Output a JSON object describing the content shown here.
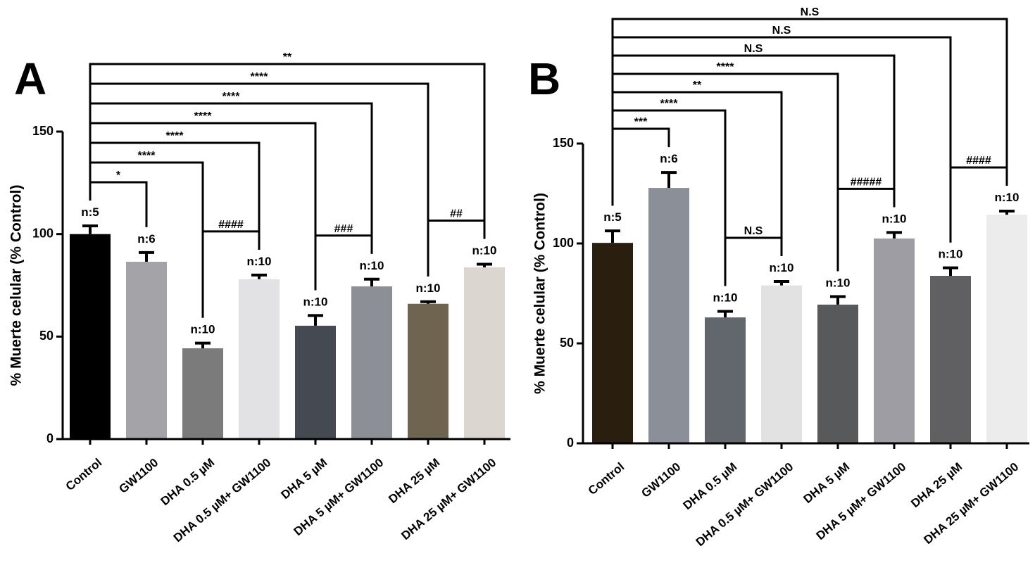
{
  "chart_data": [
    {
      "type": "bar",
      "panel": "A",
      "ylabel": "% Muerte celular (% Control)",
      "categories": [
        "Control",
        "GW1100",
        "DHA 0.5 µM",
        "DHA 0.5 µM+ GW1100",
        "DHA 5 µM",
        "DHA 5 µM+ GW1100",
        "DHA 25 µM",
        "DHA 25 µM+ GW1100"
      ],
      "values": [
        100,
        86.5,
        44.3,
        78,
        55.3,
        74.5,
        66,
        83.8
      ],
      "errors": [
        4,
        4.5,
        2.5,
        2,
        5,
        3.5,
        1,
        1.5
      ],
      "colors": [
        "#000000",
        "#a3a3a8",
        "#7b7b7b",
        "#e2e2e4",
        "#454a52",
        "#8c8f96",
        "#6e6450",
        "#dcd6d0"
      ],
      "n_labels": [
        "n:5",
        "n:6",
        "n:10",
        "n:10",
        "n:10",
        "n:10",
        "n:10",
        "n:10"
      ],
      "ylim": [
        0,
        150
      ],
      "yticks": [
        0,
        50,
        100,
        150
      ],
      "comparisons": [
        {
          "from": 0,
          "to": 1,
          "label": "*"
        },
        {
          "from": 0,
          "to": 2,
          "label": "****"
        },
        {
          "from": 0,
          "to": 3,
          "label": "****"
        },
        {
          "from": 0,
          "to": 4,
          "label": "****"
        },
        {
          "from": 0,
          "to": 5,
          "label": "****"
        },
        {
          "from": 0,
          "to": 6,
          "label": "****"
        },
        {
          "from": 0,
          "to": 7,
          "label": "**"
        },
        {
          "from": 2,
          "to": 3,
          "label": "####"
        },
        {
          "from": 4,
          "to": 5,
          "label": "###"
        },
        {
          "from": 6,
          "to": 7,
          "label": "##"
        }
      ]
    },
    {
      "type": "bar",
      "panel": "B",
      "ylabel": "% Muerte celular (% Control)",
      "categories": [
        "Control",
        "GW1100",
        "DHA 0.5 µM",
        "DHA 0.5 µM+ GW1100",
        "DHA 5 µM",
        "DHA 5 µM+ GW1100",
        "DHA 25 µM",
        "DHA 25 µM+ GW1100"
      ],
      "values": [
        100.3,
        127.8,
        63,
        79,
        69.4,
        102.5,
        83.8,
        114.4
      ],
      "errors": [
        6,
        7.7,
        3,
        2,
        4,
        3,
        4,
        1.8
      ],
      "colors": [
        "#2a1f0f",
        "#8a8f98",
        "#62676e",
        "#e2e2e2",
        "#58595b",
        "#9d9da3",
        "#606062",
        "#ececec"
      ],
      "n_labels": [
        "n:5",
        "n:6",
        "n:10",
        "n:10",
        "n:10",
        "n:10",
        "n:10",
        "n:10"
      ],
      "ylim": [
        0,
        150
      ],
      "yticks": [
        0,
        50,
        100,
        150
      ],
      "comparisons": [
        {
          "from": 0,
          "to": 1,
          "label": "***"
        },
        {
          "from": 0,
          "to": 2,
          "label": "****"
        },
        {
          "from": 0,
          "to": 3,
          "label": "**"
        },
        {
          "from": 0,
          "to": 4,
          "label": "****"
        },
        {
          "from": 0,
          "to": 5,
          "label": "N.S"
        },
        {
          "from": 0,
          "to": 6,
          "label": "N.S"
        },
        {
          "from": 0,
          "to": 7,
          "label": "N.S"
        },
        {
          "from": 2,
          "to": 3,
          "label": "N.S"
        },
        {
          "from": 4,
          "to": 5,
          "label": "#####"
        },
        {
          "from": 6,
          "to": 7,
          "label": "####"
        }
      ]
    }
  ]
}
